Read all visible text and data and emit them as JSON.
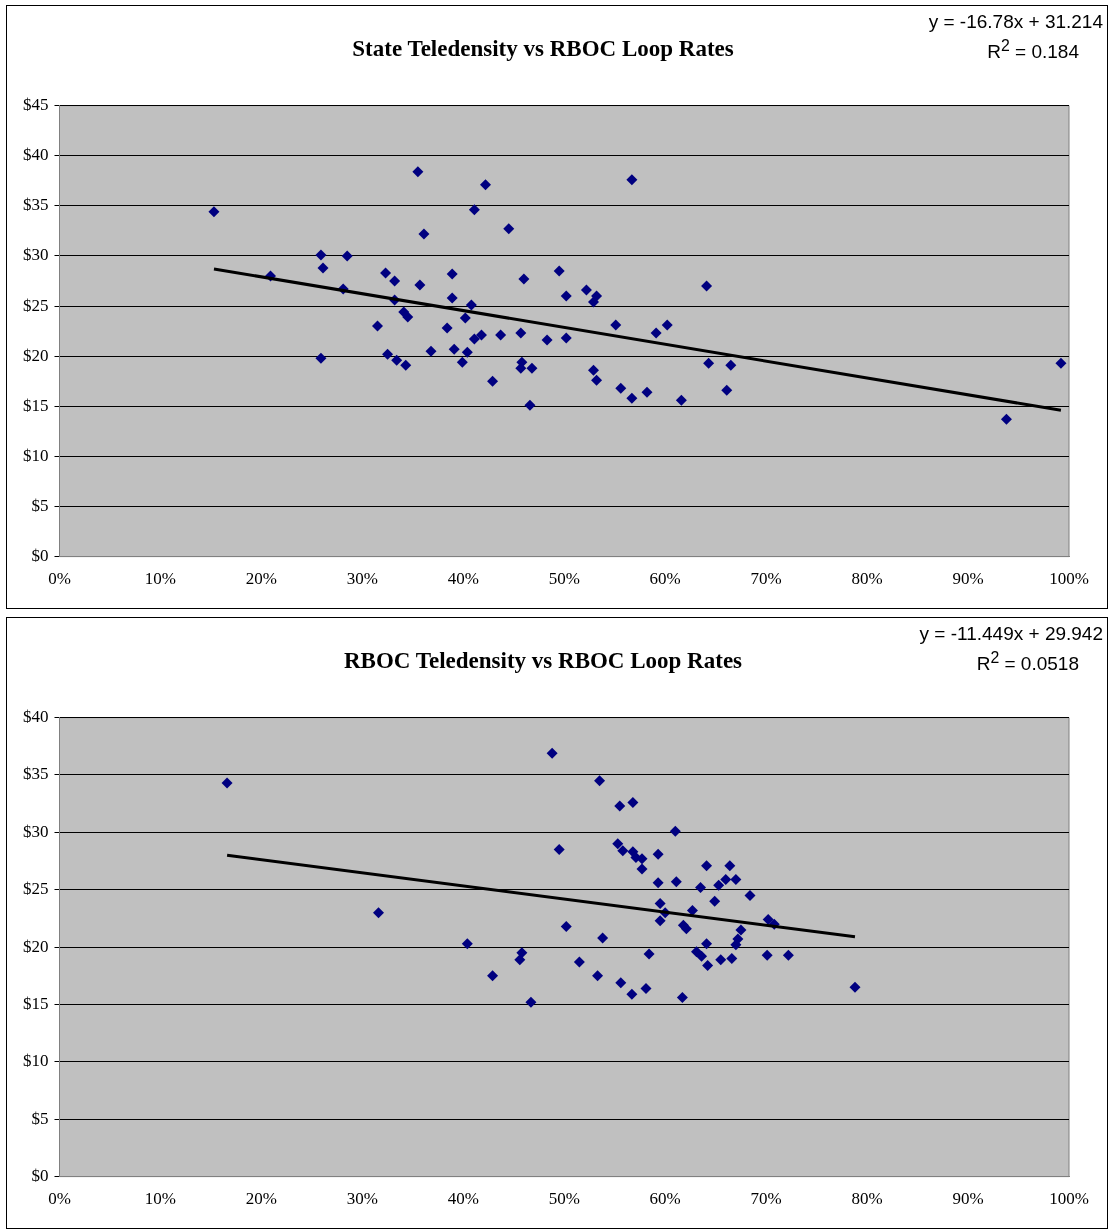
{
  "chart_data": [
    {
      "type": "scatter",
      "title": "State Teledensity vs RBOC Loop Rates",
      "annotations": [
        "y = -16.78x + 31.214",
        "R$^{2}$ = 0.184"
      ],
      "xlim": [
        0,
        1
      ],
      "xticks": [
        {
          "value": 0,
          "label": "0%"
        },
        {
          "value": 0.1,
          "label": "10%"
        },
        {
          "value": 0.2,
          "label": "20%"
        },
        {
          "value": 0.3,
          "label": "30%"
        },
        {
          "value": 0.4,
          "label": "40%"
        },
        {
          "value": 0.5,
          "label": "50%"
        },
        {
          "value": 0.6,
          "label": "60%"
        },
        {
          "value": 0.7,
          "label": "70%"
        },
        {
          "value": 0.8,
          "label": "80%"
        },
        {
          "value": 0.9,
          "label": "90%"
        },
        {
          "value": 1,
          "label": "100%"
        }
      ],
      "ylim": [
        0,
        45
      ],
      "yticks": [
        {
          "value": 0,
          "label": "$0"
        },
        {
          "value": 5,
          "label": "$5"
        },
        {
          "value": 10,
          "label": "$10"
        },
        {
          "value": 15,
          "label": "$15"
        },
        {
          "value": 20,
          "label": "$20"
        },
        {
          "value": 25,
          "label": "$25"
        },
        {
          "value": 30,
          "label": "$30"
        },
        {
          "value": 35,
          "label": "$35"
        },
        {
          "value": 40,
          "label": "$40"
        },
        {
          "value": 45,
          "label": "$45"
        }
      ],
      "grid": "y",
      "series": [
        {
          "marker": "diamond",
          "color": "#000080",
          "x": [
            0.153,
            0.355,
            0.422,
            0.411,
            0.445,
            0.361,
            0.259,
            0.285,
            0.261,
            0.209,
            0.323,
            0.332,
            0.357,
            0.389,
            0.46,
            0.281,
            0.332,
            0.389,
            0.408,
            0.341,
            0.345,
            0.402,
            0.315,
            0.384,
            0.411,
            0.418,
            0.437,
            0.457,
            0.368,
            0.391,
            0.404,
            0.259,
            0.325,
            0.334,
            0.343,
            0.399,
            0.429,
            0.458,
            0.457,
            0.468,
            0.466,
            0.567,
            0.495,
            0.502,
            0.522,
            0.532,
            0.529,
            0.551,
            0.483,
            0.502,
            0.591,
            0.602,
            0.641,
            0.529,
            0.532,
            0.556,
            0.567,
            0.582,
            0.616,
            0.661,
            0.643,
            0.665,
            0.938,
            0.992
          ],
          "values": [
            34.4,
            38.4,
            37.1,
            34.6,
            32.7,
            32.2,
            30.1,
            30.0,
            28.8,
            28.0,
            28.3,
            27.5,
            27.1,
            28.2,
            27.7,
            26.7,
            25.6,
            25.8,
            25.1,
            24.4,
            23.9,
            23.8,
            23.0,
            22.8,
            21.7,
            22.1,
            22.1,
            22.3,
            20.5,
            20.7,
            20.4,
            19.8,
            20.2,
            19.6,
            19.1,
            19.4,
            17.5,
            19.4,
            18.8,
            18.8,
            15.1,
            37.6,
            28.5,
            26.0,
            26.6,
            26.0,
            25.4,
            23.1,
            21.6,
            21.8,
            22.3,
            23.1,
            27.0,
            18.6,
            17.6,
            16.8,
            15.8,
            16.4,
            15.6,
            16.6,
            19.3,
            19.1,
            13.7,
            19.3
          ]
        },
        {
          "type": "line",
          "color": "#000000",
          "x": [
            0.153,
            0.992
          ],
          "values": [
            28.7,
            14.6
          ]
        }
      ]
    },
    {
      "type": "scatter",
      "title": "RBOC Teledensity vs RBOC Loop Rates",
      "annotations": [
        "y = -11.449x + 29.942",
        "R$^{2}$ = 0.0518"
      ],
      "xlim": [
        0,
        1
      ],
      "xticks": [
        {
          "value": 0,
          "label": "0%"
        },
        {
          "value": 0.1,
          "label": "10%"
        },
        {
          "value": 0.2,
          "label": "20%"
        },
        {
          "value": 0.3,
          "label": "30%"
        },
        {
          "value": 0.4,
          "label": "40%"
        },
        {
          "value": 0.5,
          "label": "50%"
        },
        {
          "value": 0.6,
          "label": "60%"
        },
        {
          "value": 0.7,
          "label": "70%"
        },
        {
          "value": 0.8,
          "label": "80%"
        },
        {
          "value": 0.9,
          "label": "90%"
        },
        {
          "value": 1,
          "label": "100%"
        }
      ],
      "ylim": [
        0,
        40
      ],
      "yticks": [
        {
          "value": 0,
          "label": "$0"
        },
        {
          "value": 5,
          "label": "$5"
        },
        {
          "value": 10,
          "label": "$10"
        },
        {
          "value": 15,
          "label": "$15"
        },
        {
          "value": 20,
          "label": "$20"
        },
        {
          "value": 25,
          "label": "$25"
        },
        {
          "value": 30,
          "label": "$30"
        },
        {
          "value": 35,
          "label": "$35"
        },
        {
          "value": 40,
          "label": "$40"
        }
      ],
      "grid": "y",
      "series": [
        {
          "marker": "diamond",
          "color": "#000080",
          "x": [
            0.166,
            0.316,
            0.404,
            0.429,
            0.458,
            0.456,
            0.467,
            0.488,
            0.535,
            0.555,
            0.568,
            0.61,
            0.495,
            0.553,
            0.558,
            0.568,
            0.571,
            0.577,
            0.577,
            0.593,
            0.641,
            0.664,
            0.67,
            0.66,
            0.653,
            0.635,
            0.593,
            0.611,
            0.684,
            0.649,
            0.595,
            0.6,
            0.595,
            0.627,
            0.618,
            0.621,
            0.702,
            0.708,
            0.502,
            0.538,
            0.675,
            0.672,
            0.67,
            0.641,
            0.631,
            0.636,
            0.584,
            0.655,
            0.666,
            0.642,
            0.701,
            0.722,
            0.515,
            0.533,
            0.556,
            0.567,
            0.581,
            0.617,
            0.788
          ],
          "values": [
            34.3,
            23.0,
            20.3,
            17.5,
            19.5,
            18.9,
            15.2,
            36.9,
            34.5,
            32.3,
            32.6,
            30.1,
            28.5,
            29.0,
            28.4,
            28.3,
            27.8,
            27.7,
            26.8,
            28.1,
            27.1,
            27.1,
            25.9,
            25.9,
            25.4,
            25.2,
            25.6,
            25.7,
            24.5,
            24.0,
            23.8,
            23.0,
            22.3,
            23.2,
            21.9,
            21.6,
            22.4,
            22.0,
            21.8,
            20.8,
            21.5,
            20.7,
            20.2,
            20.3,
            19.6,
            19.2,
            19.4,
            18.9,
            19.0,
            18.4,
            19.3,
            19.3,
            18.7,
            17.5,
            16.9,
            15.9,
            16.4,
            15.6,
            16.5
          ]
        },
        {
          "type": "line",
          "color": "#000000",
          "x": [
            0.166,
            0.788
          ],
          "values": [
            28.0,
            20.9
          ]
        }
      ]
    }
  ]
}
